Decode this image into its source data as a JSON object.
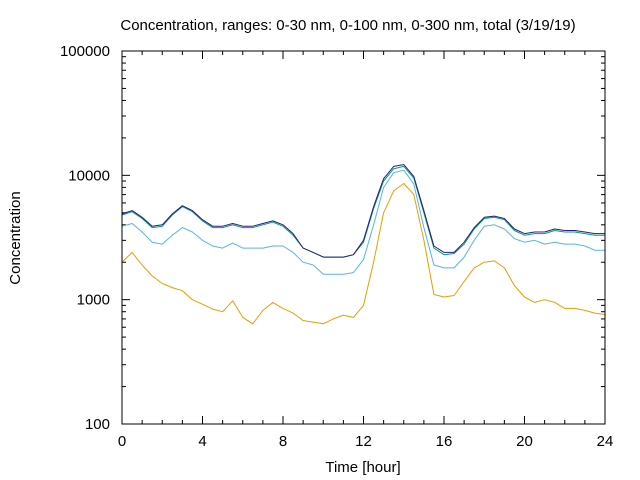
{
  "chart_data": {
    "type": "line",
    "title": "Concentration, ranges: 0-30 nm, 0-100 nm, 0-300 nm, total (3/19/19)",
    "xlabel": "Time [hour]",
    "ylabel": "Concentration",
    "xlim": [
      0,
      24
    ],
    "ylim": [
      100,
      100000
    ],
    "yscale": "log",
    "xticks": [
      0,
      4,
      8,
      12,
      16,
      20,
      24
    ],
    "xtick_labels": [
      "0",
      "4",
      "8",
      "12",
      "16",
      "20",
      "24"
    ],
    "yticks": [
      100,
      1000,
      10000,
      100000
    ],
    "ytick_labels": [
      "100",
      "1000",
      "10000",
      "100000"
    ],
    "grid": false,
    "legend": false,
    "series": [
      {
        "color": "#e69f00",
        "x": [
          0,
          0.5,
          1,
          1.5,
          2,
          2.5,
          3,
          3.5,
          4,
          4.5,
          5,
          5.5,
          6,
          6.5,
          7,
          7.5,
          8,
          8.5,
          9,
          9.5,
          10,
          10.5,
          11,
          11.5,
          12,
          12.5,
          13,
          13.5,
          14,
          14.5,
          15,
          15.5,
          16,
          16.5,
          17,
          17.5,
          18,
          18.5,
          19,
          19.5,
          20,
          20.5,
          21,
          21.5,
          22,
          22.5,
          23,
          23.5,
          24
        ],
        "y": [
          2000,
          2400,
          1900,
          1550,
          1350,
          1250,
          1180,
          1000,
          920,
          840,
          800,
          980,
          720,
          640,
          820,
          950,
          850,
          780,
          680,
          660,
          640,
          700,
          750,
          720,
          900,
          2000,
          5000,
          7500,
          8600,
          7000,
          3000,
          1100,
          1050,
          1080,
          1400,
          1800,
          2000,
          2050,
          1800,
          1300,
          1050,
          950,
          1000,
          950,
          850,
          850,
          820,
          780,
          760
        ]
      },
      {
        "color": "#56b4e9",
        "x": [
          0,
          0.5,
          1,
          1.5,
          2,
          2.5,
          3,
          3.5,
          4,
          4.5,
          5,
          5.5,
          6,
          6.5,
          7,
          7.5,
          8,
          8.5,
          9,
          9.5,
          10,
          10.5,
          11,
          11.5,
          12,
          12.5,
          13,
          13.5,
          14,
          14.5,
          15,
          15.5,
          16,
          16.5,
          17,
          17.5,
          18,
          18.5,
          19,
          19.5,
          20,
          20.5,
          21,
          21.5,
          22,
          22.5,
          23,
          23.5,
          24
        ],
        "y": [
          3900,
          4100,
          3500,
          2900,
          2800,
          3300,
          3800,
          3500,
          3000,
          2700,
          2600,
          2850,
          2600,
          2600,
          2600,
          2700,
          2700,
          2400,
          2000,
          1900,
          1600,
          1600,
          1600,
          1650,
          2100,
          4000,
          8000,
          10500,
          11000,
          8500,
          3800,
          1900,
          1800,
          1800,
          2200,
          3000,
          3900,
          4000,
          3700,
          3100,
          2900,
          3000,
          2800,
          2900,
          2800,
          2800,
          2700,
          2500,
          2500
        ]
      },
      {
        "color": "#009e73",
        "x": [
          0,
          0.5,
          1,
          1.5,
          2,
          2.5,
          3,
          3.5,
          4,
          4.5,
          5,
          5.5,
          6,
          6.5,
          7,
          7.5,
          8,
          8.5,
          9,
          9.5,
          10,
          10.5,
          11,
          11.5,
          12,
          12.5,
          13,
          13.5,
          14,
          14.5,
          15,
          15.5,
          16,
          16.5,
          17,
          17.5,
          18,
          18.5,
          19,
          19.5,
          20,
          20.5,
          21,
          21.5,
          22,
          22.5,
          23,
          23.5,
          24
        ],
        "y": [
          4800,
          5100,
          4500,
          3800,
          3900,
          4800,
          5600,
          5100,
          4300,
          3800,
          3800,
          4000,
          3800,
          3800,
          4000,
          4200,
          3900,
          3300,
          2600,
          2400,
          2200,
          2200,
          2200,
          2300,
          2900,
          5400,
          9000,
          11300,
          11800,
          9500,
          5000,
          2600,
          2300,
          2350,
          2800,
          3700,
          4500,
          4600,
          4400,
          3600,
          3300,
          3400,
          3400,
          3600,
          3500,
          3500,
          3400,
          3300,
          3300
        ]
      },
      {
        "color": "#2b1b8a",
        "x": [
          0,
          0.5,
          1,
          1.5,
          2,
          2.5,
          3,
          3.5,
          4,
          4.5,
          5,
          5.5,
          6,
          6.5,
          7,
          7.5,
          8,
          8.5,
          9,
          9.5,
          10,
          10.5,
          11,
          11.5,
          12,
          12.5,
          13,
          13.5,
          14,
          14.5,
          15,
          15.5,
          16,
          16.5,
          17,
          17.5,
          18,
          18.5,
          19,
          19.5,
          20,
          20.5,
          21,
          21.5,
          22,
          22.5,
          23,
          23.5,
          24
        ],
        "y": [
          4900,
          5200,
          4600,
          3900,
          4000,
          4900,
          5700,
          5200,
          4400,
          3900,
          3900,
          4100,
          3900,
          3900,
          4100,
          4300,
          4000,
          3400,
          2600,
          2400,
          2200,
          2200,
          2200,
          2300,
          3000,
          5600,
          9400,
          11800,
          12200,
          9800,
          5200,
          2700,
          2400,
          2400,
          2900,
          3800,
          4600,
          4700,
          4500,
          3700,
          3400,
          3500,
          3500,
          3700,
          3600,
          3600,
          3500,
          3400,
          3400
        ]
      }
    ]
  }
}
